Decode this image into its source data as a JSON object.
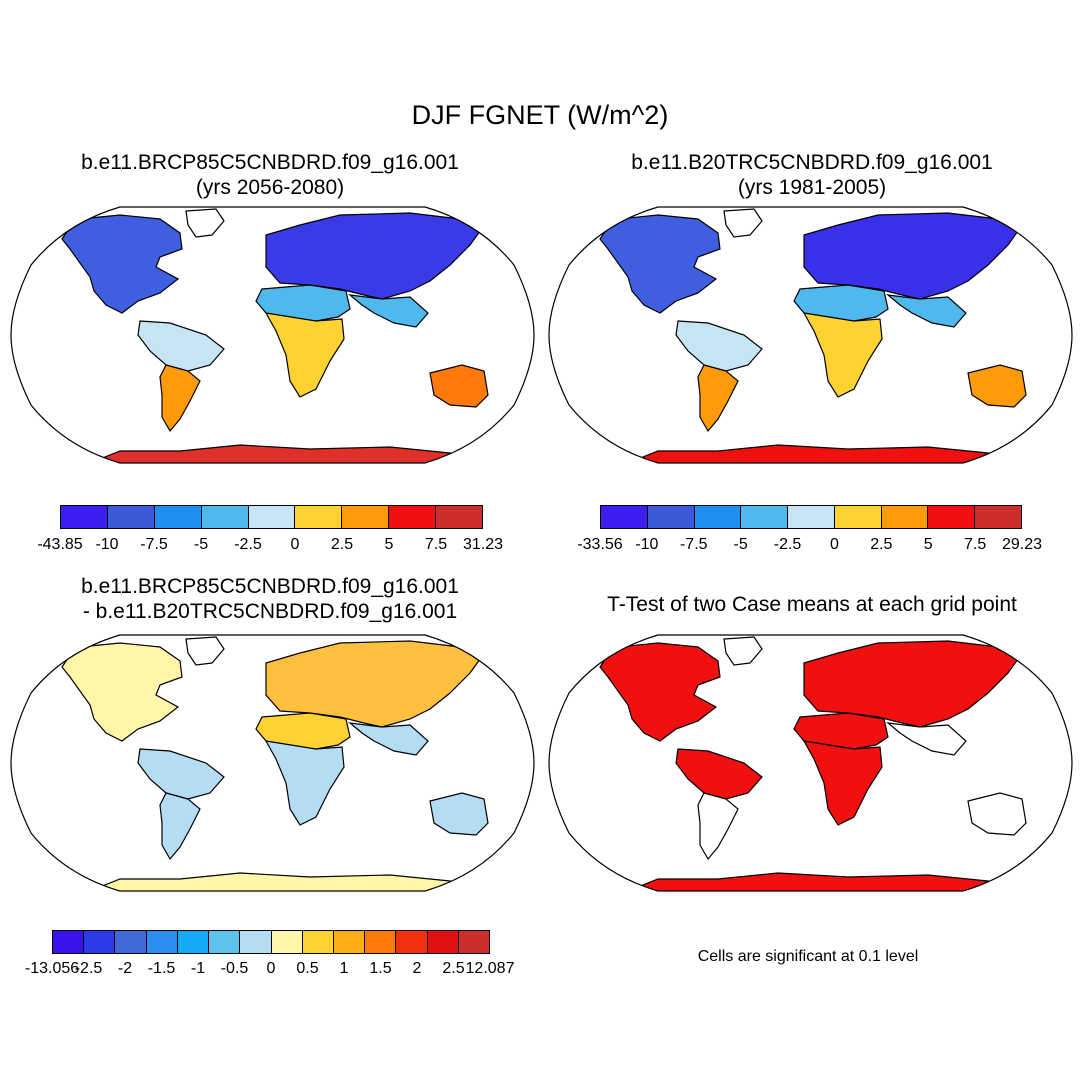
{
  "figure": {
    "title": "DJF FGNET (W/m^2)"
  },
  "panels": [
    {
      "id": "future",
      "title_line1": "b.e11.BRCP85C5CNBDRD.f09_g16.001",
      "title_line2": "(yrs 2056-2080)",
      "colorbar": {
        "colors": [
          "#3b1ef0",
          "#3b5ad8",
          "#1f8ff0",
          "#4fb9ee",
          "#c6e4f4",
          "#ffd233",
          "#ff9a0a",
          "#f01010",
          "#cc2d2d"
        ],
        "labels": [
          "-43.85",
          "-10",
          "-7.5",
          "-5",
          "-2.5",
          "0",
          "2.5",
          "5",
          "7.5",
          "31.23"
        ]
      }
    },
    {
      "id": "historical",
      "title_line1": "b.e11.B20TRC5CNBDRD.f09_g16.001",
      "title_line2": "(yrs 1981-2005)",
      "colorbar": {
        "colors": [
          "#3b1ef0",
          "#3b5ad8",
          "#1f8ff0",
          "#4fb9ee",
          "#c6e4f4",
          "#ffd233",
          "#ff9a0a",
          "#f01010",
          "#cc2d2d"
        ],
        "labels": [
          "-33.56",
          "-10",
          "-7.5",
          "-5",
          "-2.5",
          "0",
          "2.5",
          "5",
          "7.5",
          "29.23"
        ]
      }
    },
    {
      "id": "difference",
      "title_line1": "b.e11.BRCP85C5CNBDRD.f09_g16.001",
      "title_line2": "- b.e11.B20TRC5CNBDRD.f09_g16.001",
      "colorbar": {
        "colors": [
          "#3b12ee",
          "#2b3ce8",
          "#3f6ad8",
          "#2a8ff0",
          "#14aaf5",
          "#5ec2ee",
          "#b4dcf2",
          "#fff6a8",
          "#ffd233",
          "#ffad14",
          "#ff7a0a",
          "#f03010",
          "#e01010",
          "#cc2d2d"
        ],
        "labels": [
          "-13.056",
          "-2.5",
          "-2",
          "-1.5",
          "-1",
          "-0.5",
          "0",
          "0.5",
          "1",
          "1.5",
          "2",
          "2.5",
          "12.087"
        ]
      }
    },
    {
      "id": "ttest",
      "title_line1": "T-Test of two Case means at each grid point",
      "note": "Cells are significant at 0.1 level"
    }
  ],
  "map_fills": {
    "future": {
      "north_america": "#3f5ee0",
      "greenland": "#ffffff",
      "south_america_north": "#c6e4f4",
      "south_america_south": "#ff9a0a",
      "africa_north": "#4fb9ee",
      "africa_south": "#ffd233",
      "eurasia": "#3b3ae8",
      "asia_south": "#4fb9ee",
      "australia": "#ff7a0a",
      "antarctica": "#e0302a"
    },
    "historical": {
      "north_america": "#3f5ee0",
      "greenland": "#ffffff",
      "south_america_north": "#c6e4f4",
      "south_america_south": "#ff9a0a",
      "africa_north": "#4fb9ee",
      "africa_south": "#ffd233",
      "eurasia": "#3a30ec",
      "asia_south": "#4fb9ee",
      "australia": "#ff9a0a",
      "antarctica": "#f01010"
    },
    "difference": {
      "north_america": "#fff6a8",
      "greenland": "#ffffff",
      "south_america_north": "#b4dcf2",
      "south_america_south": "#b4dcf2",
      "africa_north": "#ffd233",
      "africa_south": "#b4dcf2",
      "eurasia": "#ffc040",
      "asia_south": "#b4dcf2",
      "australia": "#b4dcf2",
      "antarctica": "#fff6a8"
    },
    "ttest": {
      "north_america": "#f01010",
      "greenland": "#ffffff",
      "south_america_north": "#f01010",
      "south_america_south": "#ffffff",
      "africa_north": "#f01010",
      "africa_south": "#f01010",
      "eurasia": "#f01010",
      "asia_south": "#ffffff",
      "australia": "#ffffff",
      "antarctica": "#f01010"
    }
  }
}
